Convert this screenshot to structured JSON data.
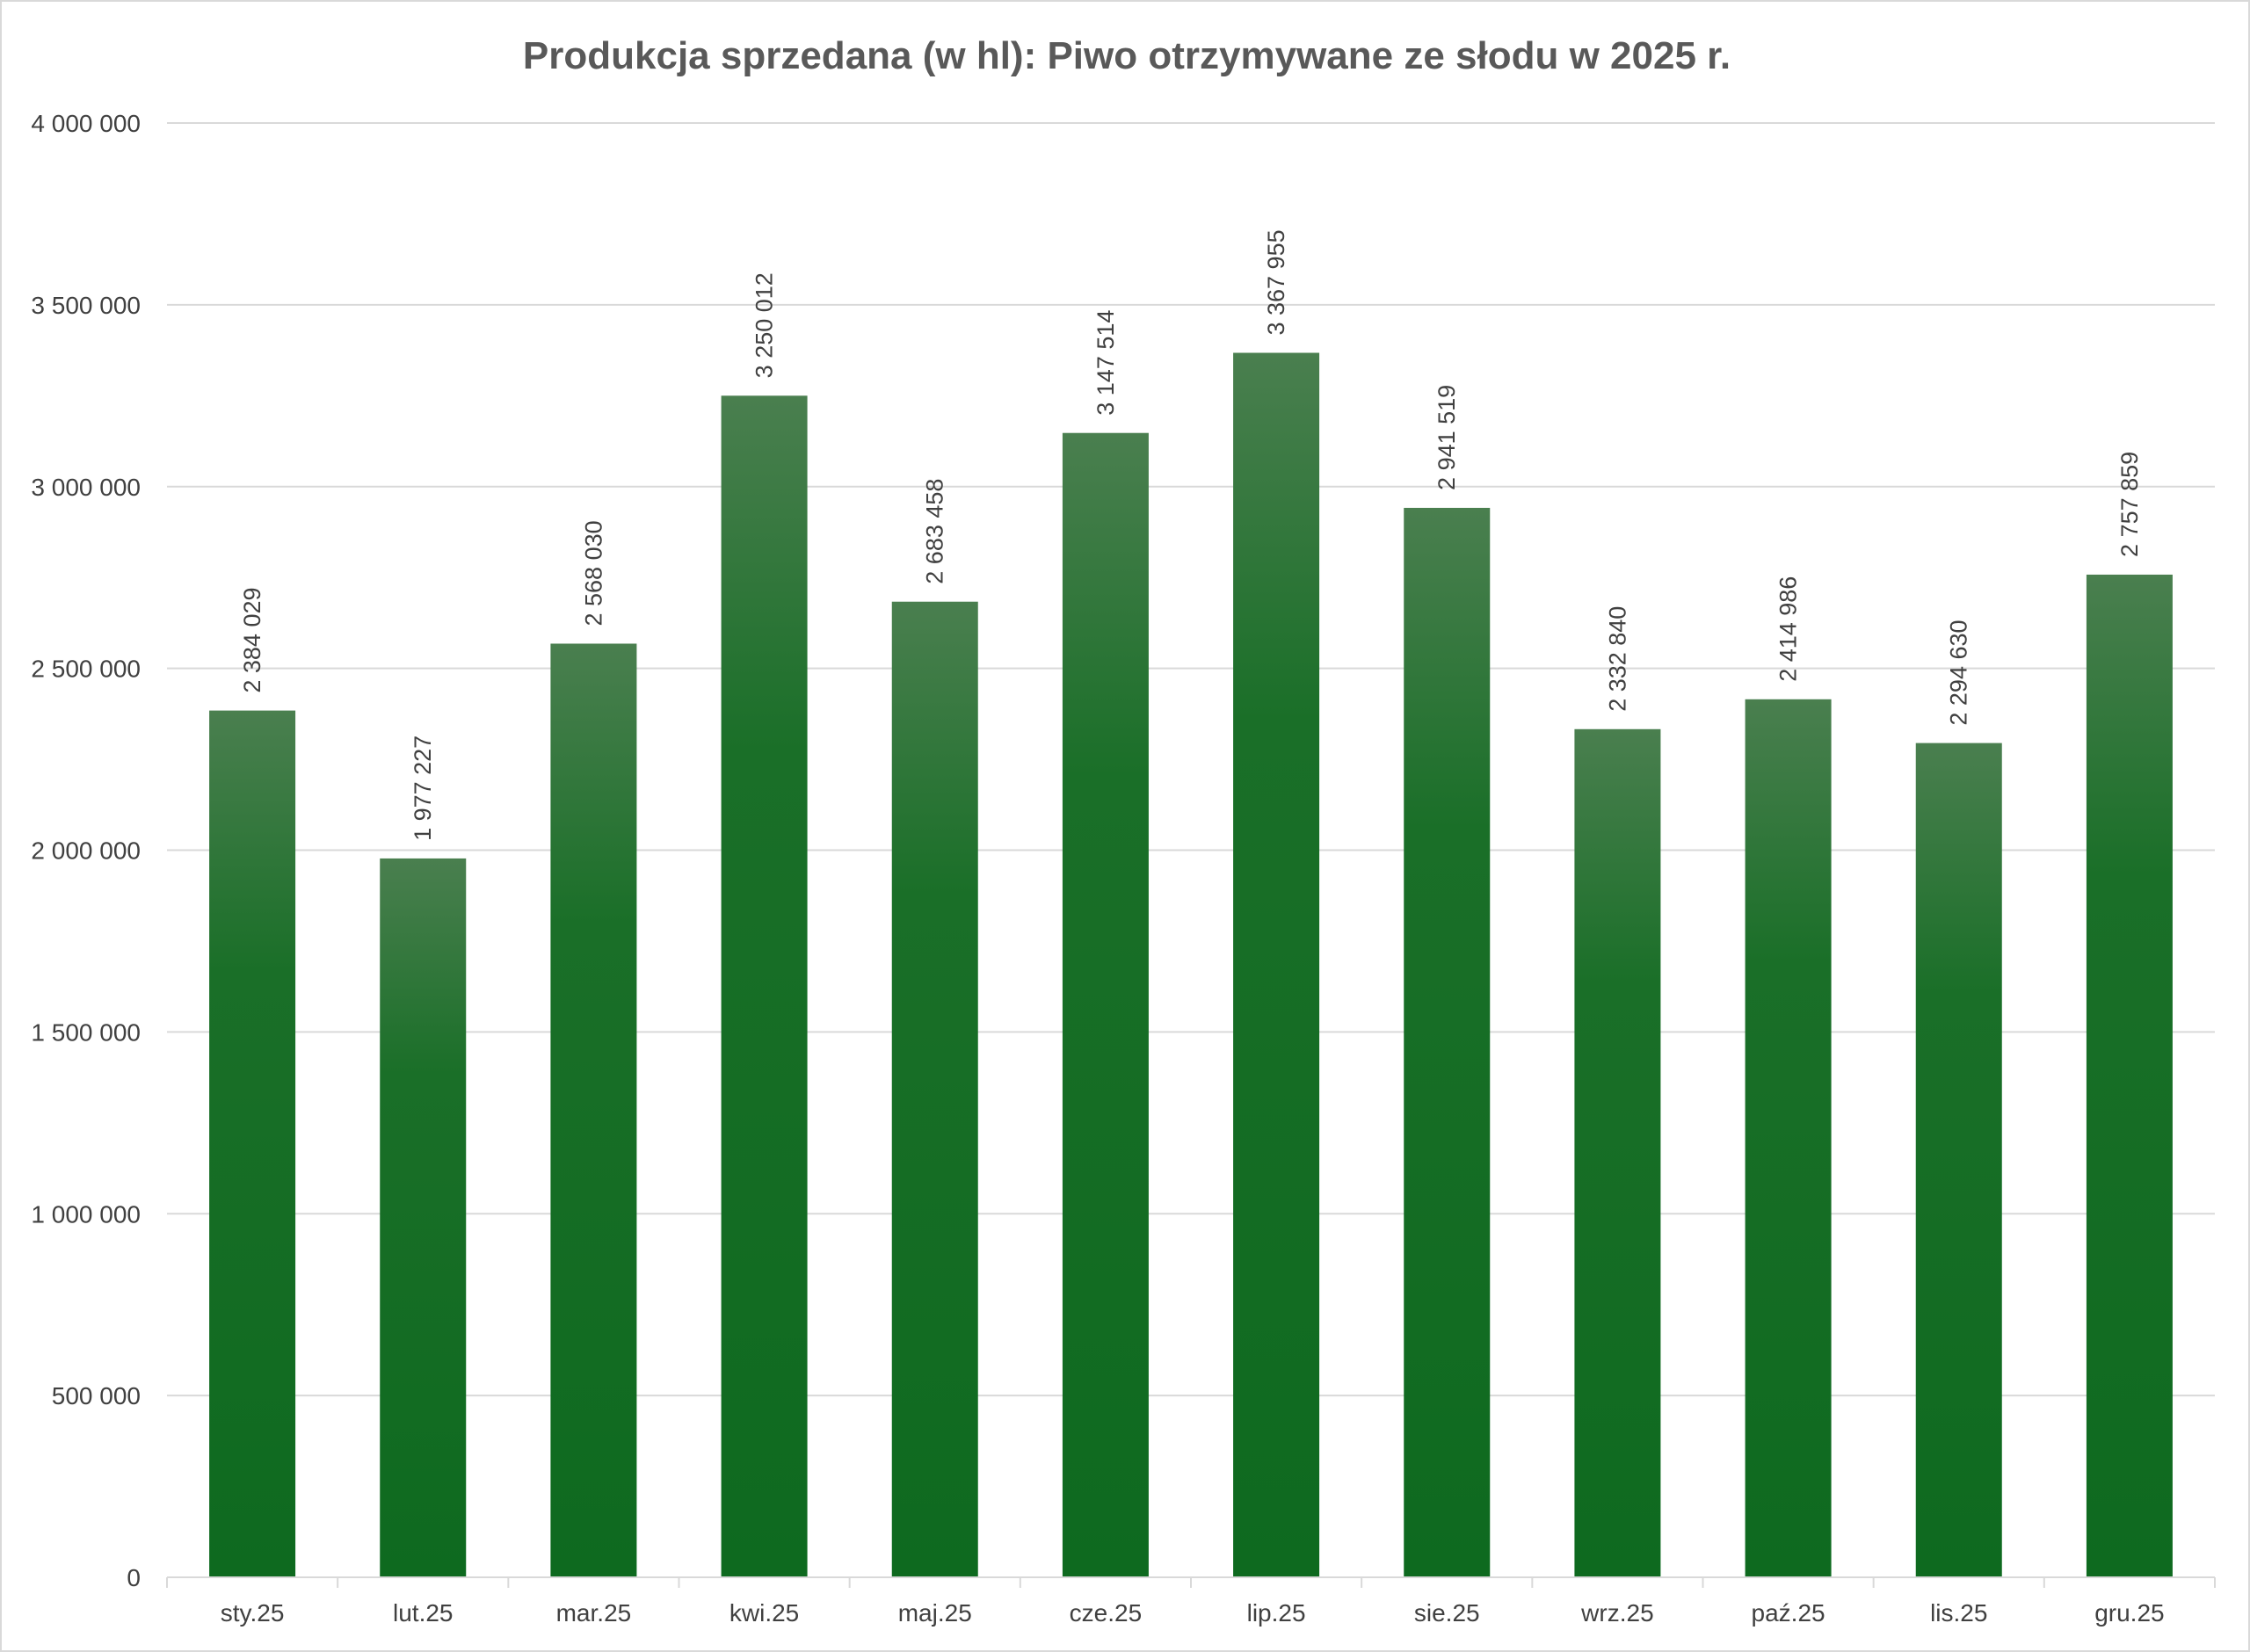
{
  "chart_data": {
    "type": "bar",
    "title": "Produkcja sprzedana (w hl): Piwo otrzymywane ze słodu w 2025 r.",
    "xlabel": "",
    "ylabel": "",
    "categories": [
      "sty.25",
      "lut.25",
      "mar.25",
      "kwi.25",
      "maj.25",
      "cze.25",
      "lip.25",
      "sie.25",
      "wrz.25",
      "paź.25",
      "lis.25",
      "gru.25"
    ],
    "values": [
      2384029,
      1977227,
      2568030,
      3250012,
      2683458,
      3147514,
      3367955,
      2941519,
      2332840,
      2414986,
      2294630,
      2757859
    ],
    "value_labels": [
      "2 384 029",
      "1 977 227",
      "2 568 030",
      "3 250 012",
      "2 683 458",
      "3 147 514",
      "3 367 955",
      "2 941 519",
      "2 332 840",
      "2 414 986",
      "2 294 630",
      "2 757 859"
    ],
    "ylim": [
      0,
      4000000
    ],
    "y_ticks": [
      0,
      500000,
      1000000,
      1500000,
      2000000,
      2500000,
      3000000,
      3500000,
      4000000
    ],
    "y_tick_labels": [
      "0",
      "500 000",
      "1 000 000",
      "1 500 000",
      "2 000 000",
      "2 500 000",
      "3 000 000",
      "3 500 000",
      "4 000 000"
    ],
    "grid": true,
    "legend": "none",
    "colors": {
      "bar_top": "#4a7f4f",
      "bar_bottom": "#0e6a1f",
      "gridline": "#d9d9d9",
      "text": "#404040",
      "title": "#595959"
    }
  }
}
